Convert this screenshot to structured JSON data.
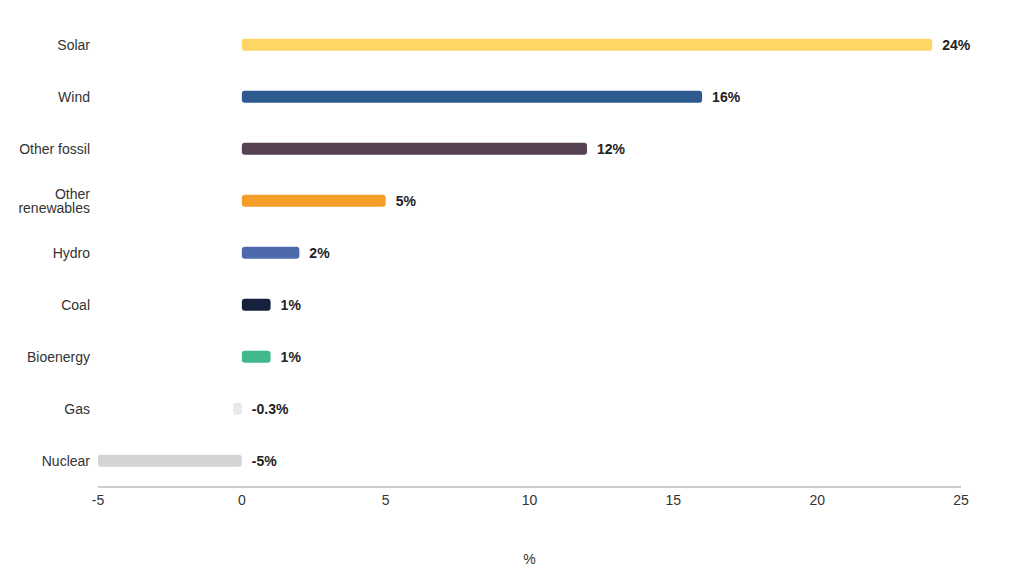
{
  "chart_data": {
    "type": "bar",
    "orientation": "horizontal",
    "categories": [
      "Solar",
      "Wind",
      "Other fossil",
      "Other renewables",
      "Hydro",
      "Coal",
      "Bioenergy",
      "Gas",
      "Nuclear"
    ],
    "values": [
      24,
      16,
      12,
      5,
      2,
      1,
      1,
      -0.3,
      -5
    ],
    "value_labels": [
      "24%",
      "16%",
      "12%",
      "5%",
      "2%",
      "1%",
      "1%",
      "-0.3%",
      "-5%"
    ],
    "colors": [
      "#fdd663",
      "#2e5b8f",
      "#574254",
      "#f59e2a",
      "#4d6aad",
      "#16223d",
      "#3fb98a",
      "#e8e8e8",
      "#d4d4d4"
    ],
    "xlabel": "%",
    "xlim": [
      -5,
      25
    ],
    "xticks": [
      -5,
      0,
      5,
      10,
      15,
      20,
      25
    ],
    "grid": false,
    "data_labels": true
  }
}
